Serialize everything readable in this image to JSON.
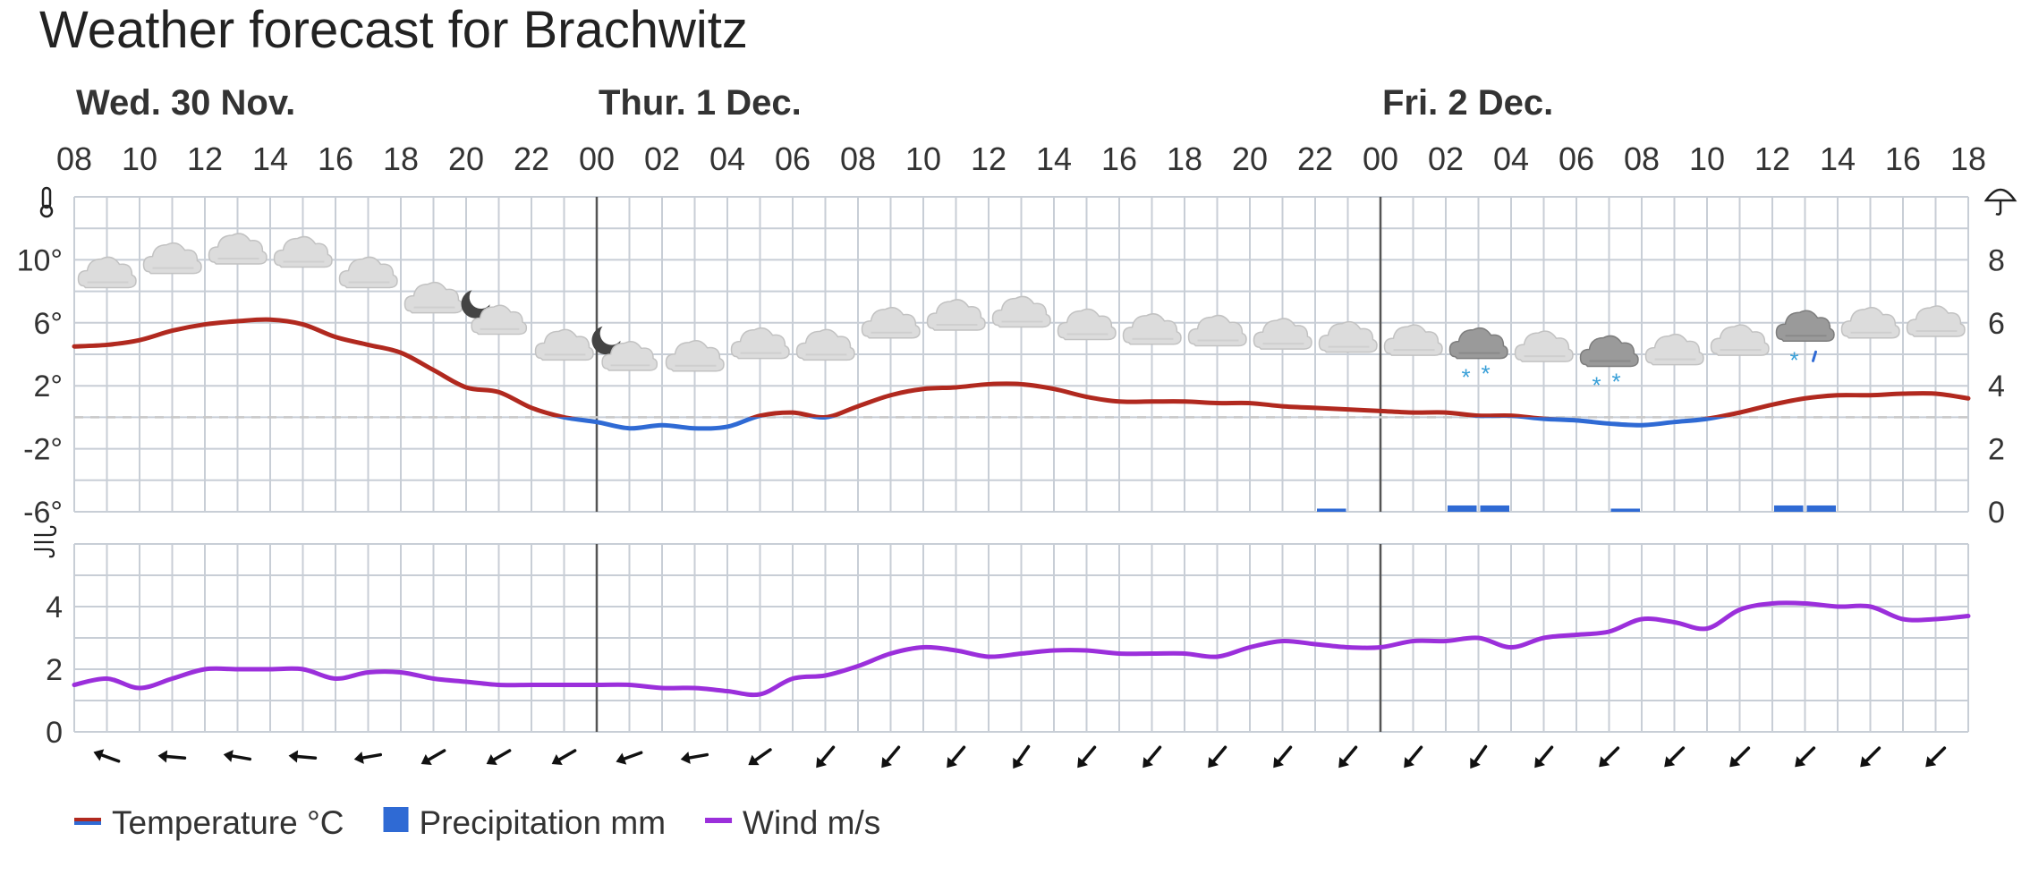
{
  "title": "Weather forecast for Brachwitz",
  "days": [
    {
      "label": "Wed. 30 Nov.",
      "hour": 8
    },
    {
      "label": "Thur. 1 Dec.",
      "hour": 24
    },
    {
      "label": "Fri. 2 Dec.",
      "hour": 48
    }
  ],
  "chart_data": [
    {
      "type": "line",
      "name": "temperature-precipitation-panel",
      "x_ticks": [
        "08",
        "10",
        "12",
        "14",
        "16",
        "18",
        "20",
        "22",
        "00",
        "02",
        "04",
        "06",
        "08",
        "10",
        "12",
        "14",
        "16",
        "18",
        "20",
        "22",
        "00",
        "02",
        "04",
        "06",
        "08",
        "10",
        "12",
        "14",
        "16",
        "18"
      ],
      "x_range_hours": [
        8,
        66
      ],
      "y_left_ticks": [
        "10°",
        "6°",
        "2°",
        "-2°",
        "-6°"
      ],
      "y_left_range": [
        -6,
        14
      ],
      "y_right_ticks": [
        "8",
        "6",
        "4",
        "2",
        "0"
      ],
      "y_right_range": [
        0,
        10
      ],
      "freezing_line": 0,
      "grid": true,
      "temperature": {
        "colors": {
          "above_zero": "#b1291f",
          "below_zero": "#2f6ad4"
        },
        "hours": [
          8,
          9,
          10,
          11,
          12,
          13,
          14,
          15,
          16,
          17,
          18,
          19,
          20,
          21,
          22,
          23,
          24,
          25,
          26,
          27,
          28,
          29,
          30,
          31,
          32,
          33,
          34,
          35,
          36,
          37,
          38,
          39,
          40,
          41,
          42,
          43,
          44,
          45,
          46,
          47,
          48,
          49,
          50,
          51,
          52,
          53,
          54,
          55,
          56,
          57,
          58,
          59,
          60,
          61,
          62,
          63,
          64,
          65,
          66
        ],
        "values": [
          4.5,
          4.6,
          4.9,
          5.5,
          5.9,
          6.1,
          6.2,
          5.9,
          5.1,
          4.6,
          4.1,
          3.0,
          1.9,
          1.6,
          0.6,
          0.0,
          -0.3,
          -0.7,
          -0.5,
          -0.7,
          -0.6,
          0.1,
          0.3,
          0.0,
          0.7,
          1.4,
          1.8,
          1.9,
          2.1,
          2.1,
          1.8,
          1.3,
          1.0,
          1.0,
          1.0,
          0.9,
          0.9,
          0.7,
          0.6,
          0.5,
          0.4,
          0.3,
          0.3,
          0.1,
          0.1,
          -0.1,
          -0.2,
          -0.4,
          -0.5,
          -0.3,
          -0.1,
          0.3,
          0.8,
          1.2,
          1.4,
          1.4,
          1.5,
          1.5,
          1.2
        ]
      },
      "precipitation": {
        "color": "#2f6ad4",
        "hours": [
          46,
          50,
          51,
          55,
          60,
          61
        ],
        "values": [
          0.1,
          0.2,
          0.2,
          0.1,
          0.2,
          0.2
        ]
      },
      "symbols": [
        {
          "hour": 9,
          "icon": "cloud-icon"
        },
        {
          "hour": 11,
          "icon": "cloud-icon"
        },
        {
          "hour": 13,
          "icon": "cloud-icon"
        },
        {
          "hour": 15,
          "icon": "cloud-icon"
        },
        {
          "hour": 17,
          "icon": "cloud-icon"
        },
        {
          "hour": 19,
          "icon": "cloud-icon"
        },
        {
          "hour": 21,
          "icon": "night-cloud-icon"
        },
        {
          "hour": 23,
          "icon": "cloud-icon"
        },
        {
          "hour": 25,
          "icon": "night-cloud-icon"
        },
        {
          "hour": 27,
          "icon": "cloud-icon"
        },
        {
          "hour": 29,
          "icon": "cloud-icon"
        },
        {
          "hour": 31,
          "icon": "cloud-icon"
        },
        {
          "hour": 33,
          "icon": "cloud-icon"
        },
        {
          "hour": 35,
          "icon": "cloud-icon"
        },
        {
          "hour": 37,
          "icon": "cloud-icon"
        },
        {
          "hour": 39,
          "icon": "cloud-icon"
        },
        {
          "hour": 41,
          "icon": "cloud-icon"
        },
        {
          "hour": 43,
          "icon": "cloud-icon"
        },
        {
          "hour": 45,
          "icon": "cloud-icon"
        },
        {
          "hour": 47,
          "icon": "cloud-icon"
        },
        {
          "hour": 49,
          "icon": "cloud-icon"
        },
        {
          "hour": 51,
          "icon": "snow-cloud-icon"
        },
        {
          "hour": 53,
          "icon": "cloud-icon"
        },
        {
          "hour": 55,
          "icon": "snow-cloud-icon"
        },
        {
          "hour": 57,
          "icon": "cloud-icon"
        },
        {
          "hour": 59,
          "icon": "cloud-icon"
        },
        {
          "hour": 61,
          "icon": "rain-cloud-icon"
        },
        {
          "hour": 63,
          "icon": "cloud-icon"
        },
        {
          "hour": 65,
          "icon": "cloud-icon"
        }
      ]
    },
    {
      "type": "line",
      "name": "wind-panel",
      "y_ticks": [
        "4",
        "2",
        "0"
      ],
      "y_range": [
        0,
        6
      ],
      "grid": true,
      "color": "#9b2fdb",
      "hours": [
        8,
        9,
        10,
        11,
        12,
        13,
        14,
        15,
        16,
        17,
        18,
        19,
        20,
        21,
        22,
        23,
        24,
        25,
        26,
        27,
        28,
        29,
        30,
        31,
        32,
        33,
        34,
        35,
        36,
        37,
        38,
        39,
        40,
        41,
        42,
        43,
        44,
        45,
        46,
        47,
        48,
        49,
        50,
        51,
        52,
        53,
        54,
        55,
        56,
        57,
        58,
        59,
        60,
        61,
        62,
        63,
        64,
        65,
        66
      ],
      "values": [
        1.5,
        1.7,
        1.4,
        1.7,
        2.0,
        2.0,
        2.0,
        2.0,
        1.7,
        1.9,
        1.9,
        1.7,
        1.6,
        1.5,
        1.5,
        1.5,
        1.5,
        1.5,
        1.4,
        1.4,
        1.3,
        1.2,
        1.7,
        1.8,
        2.1,
        2.5,
        2.7,
        2.6,
        2.4,
        2.5,
        2.6,
        2.6,
        2.5,
        2.5,
        2.5,
        2.4,
        2.7,
        2.9,
        2.8,
        2.7,
        2.7,
        2.9,
        2.9,
        3.0,
        2.7,
        3.0,
        3.1,
        3.2,
        3.6,
        3.5,
        3.3,
        3.9,
        4.1,
        4.1,
        4.0,
        4.0,
        3.6,
        3.6,
        3.7
      ],
      "direction_hours": [
        9,
        11,
        13,
        15,
        17,
        19,
        21,
        23,
        25,
        27,
        29,
        31,
        33,
        35,
        37,
        39,
        41,
        43,
        45,
        47,
        49,
        51,
        53,
        55,
        57,
        59,
        61,
        63,
        65
      ],
      "direction_from_deg": [
        110,
        95,
        100,
        95,
        80,
        60,
        60,
        60,
        70,
        80,
        55,
        40,
        40,
        40,
        35,
        40,
        40,
        40,
        40,
        40,
        40,
        35,
        40,
        45,
        45,
        45,
        45,
        45,
        45
      ]
    }
  ],
  "legend": [
    {
      "label": "Temperature °C",
      "kind": "line-two-color",
      "colors": [
        "#b1291f",
        "#2f6ad4"
      ]
    },
    {
      "label": "Precipitation mm",
      "kind": "square",
      "colors": [
        "#2f6ad4"
      ]
    },
    {
      "label": "Wind m/s",
      "kind": "line",
      "colors": [
        "#9b2fdb"
      ]
    }
  ],
  "legend_position": "bottom-left",
  "icons": {
    "temperature": "thermometer-icon",
    "precipitation": "umbrella-icon",
    "wind": "wind-icon"
  }
}
